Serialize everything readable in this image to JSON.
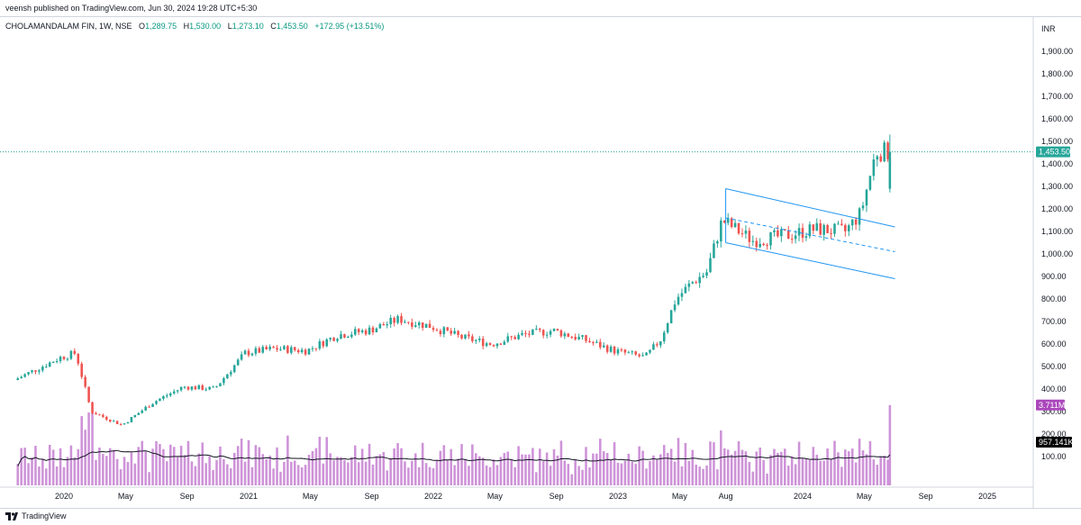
{
  "header": {
    "published": "veensh published on TradingView.com, Jun 30, 2024 19:28 UTC+5:30"
  },
  "legend": {
    "symbol": "CHOLAMANDALAM FIN, 1W, NSE",
    "open_label": "O",
    "open": "1,289.75",
    "high_label": "H",
    "high": "1,530.00",
    "low_label": "L",
    "low": "1,273.10",
    "close_label": "C",
    "close": "1,453.50",
    "change": "+172.95 (+13.51%)"
  },
  "price_axis": {
    "currency": "INR",
    "ticks": [
      "1,900.00",
      "1,800.00",
      "1,700.00",
      "1,600.00",
      "1,500.00",
      "1,400.00",
      "1,300.00",
      "1,200.00",
      "1,100.00",
      "1,000.00",
      "900.00",
      "800.00",
      "700.00",
      "600.00",
      "500.00",
      "400.00",
      "300.00",
      "200.00",
      "100.00"
    ],
    "last_price_label": "1,453.50",
    "volume_label": "3.711M",
    "volume_ma_label": "957.141K"
  },
  "time_axis": {
    "ticks": [
      "2020",
      "May",
      "Sep",
      "2021",
      "May",
      "Sep",
      "2022",
      "May",
      "Sep",
      "2023",
      "May",
      "Aug",
      "2024",
      "May",
      "Sep",
      "2025"
    ]
  },
  "footer": {
    "brand": "TradingView"
  },
  "colors": {
    "up": "#26a69a",
    "down": "#ef5350",
    "volume": "#ce93d8",
    "channel": "#2196f3",
    "last_price": "#26a69a",
    "volume_badge": "#ab47bc"
  },
  "chart_data": {
    "type": "candlestick",
    "interval": "1W",
    "ylim": [
      100,
      1950
    ],
    "anchors": [
      {
        "date": "2019-10",
        "close": 440
      },
      {
        "date": "2020-01",
        "close": 540
      },
      {
        "date": "2020-02",
        "close": 560
      },
      {
        "date": "2020-03",
        "close": 300
      },
      {
        "date": "2020-04",
        "close": 270
      },
      {
        "date": "2020-05",
        "close": 240
      },
      {
        "date": "2020-07",
        "close": 340
      },
      {
        "date": "2020-09",
        "close": 410
      },
      {
        "date": "2020-11",
        "close": 400
      },
      {
        "date": "2021-01",
        "close": 560
      },
      {
        "date": "2021-03",
        "close": 580
      },
      {
        "date": "2021-05",
        "close": 570
      },
      {
        "date": "2021-07",
        "close": 640
      },
      {
        "date": "2021-09",
        "close": 660
      },
      {
        "date": "2021-11",
        "close": 710
      },
      {
        "date": "2022-01",
        "close": 680
      },
      {
        "date": "2022-03",
        "close": 630
      },
      {
        "date": "2022-05",
        "close": 600
      },
      {
        "date": "2022-07",
        "close": 640
      },
      {
        "date": "2022-09",
        "close": 660
      },
      {
        "date": "2022-11",
        "close": 620
      },
      {
        "date": "2023-01",
        "close": 570
      },
      {
        "date": "2023-03",
        "close": 540
      },
      {
        "date": "2023-04",
        "close": 620
      },
      {
        "date": "2023-05",
        "close": 800
      },
      {
        "date": "2023-06",
        "close": 870
      },
      {
        "date": "2023-07",
        "close": 920
      },
      {
        "date": "2023-08",
        "close": 1150
      },
      {
        "date": "2023-10",
        "close": 1060
      },
      {
        "date": "2023-12",
        "close": 1080
      },
      {
        "date": "2024-02",
        "close": 1110
      },
      {
        "date": "2024-04",
        "close": 1100
      },
      {
        "date": "2024-05",
        "close": 1180
      },
      {
        "date": "2024-06",
        "close": 1453.5
      }
    ],
    "last": {
      "open": 1289.75,
      "high": 1530.0,
      "low": 1273.1,
      "close": 1453.5
    },
    "channel": {
      "upper": [
        [
          "2023-08",
          1290
        ],
        [
          "2024-07",
          1120
        ]
      ],
      "mid": [
        [
          "2023-08",
          1160
        ],
        [
          "2024-07",
          1010
        ]
      ],
      "lower": [
        [
          "2023-08",
          1050
        ],
        [
          "2024-07",
          890
        ]
      ]
    },
    "volume": {
      "last": "3.711M",
      "ma": "957.141K"
    }
  }
}
